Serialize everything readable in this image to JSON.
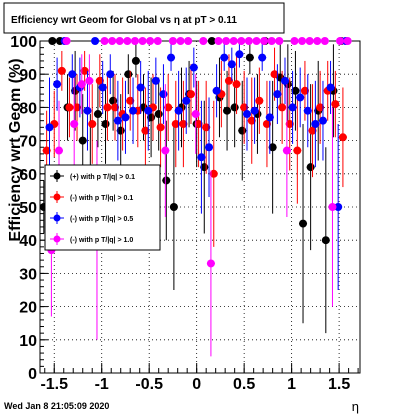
{
  "title": "Efficiency wrt Geom for Global vs  η at pT > 0.11",
  "footer": "Wed Jan  8 21:05:09 2020",
  "chart_data": {
    "type": "scatter",
    "title": "Efficiency wrt Geom for Global vs  η at pT > 0.11",
    "xlabel": "η",
    "ylabel": "Efficiency wrt Geom (%)",
    "xlim": [
      -1.65,
      1.72
    ],
    "ylim": [
      0,
      100
    ],
    "x_ticks": [
      -1.5,
      -1,
      -0.5,
      0,
      0.5,
      1,
      1.5
    ],
    "x_tick_labels": [
      "-1.5",
      "-1",
      "-0.5",
      "0",
      "0.5",
      "1",
      "1.5"
    ],
    "y_ticks": [
      0,
      10,
      20,
      30,
      40,
      50,
      60,
      70,
      80,
      90,
      100
    ],
    "y_tick_labels": [
      "0",
      "10",
      "20",
      "30",
      "40",
      "50",
      "60",
      "70",
      "80",
      "90",
      "100"
    ],
    "grid": true,
    "legend_position": "left-middle",
    "series": [
      {
        "name": "(+) with p T/|q| > 0.1",
        "color": "#000000",
        "x": [
          -1.61,
          -1.52,
          -1.44,
          -1.36,
          -1.28,
          -1.2,
          -1.12,
          -1.04,
          -0.96,
          -0.88,
          -0.8,
          -0.72,
          -0.64,
          -0.56,
          -0.48,
          -0.4,
          -0.32,
          -0.24,
          -0.16,
          -0.08,
          0.0,
          0.08,
          0.16,
          0.24,
          0.32,
          0.4,
          0.48,
          0.56,
          0.64,
          0.72,
          0.8,
          0.88,
          0.96,
          1.04,
          1.12,
          1.2,
          1.28,
          1.36,
          1.44,
          1.52
        ],
        "y": [
          50,
          100,
          100,
          80,
          85,
          70,
          60,
          78,
          75,
          82,
          73,
          90,
          94,
          80,
          77,
          78,
          58,
          50,
          80,
          84,
          75,
          62,
          100,
          83,
          79,
          80,
          73,
          95,
          78,
          100,
          68,
          89,
          87,
          85,
          45,
          62,
          79,
          40,
          85,
          100
        ],
        "err": [
          8,
          0,
          0,
          10,
          12,
          14,
          18,
          10,
          12,
          9,
          11,
          6,
          5,
          10,
          12,
          11,
          18,
          25,
          12,
          10,
          13,
          20,
          0,
          12,
          12,
          12,
          15,
          5,
          12,
          0,
          20,
          10,
          12,
          12,
          30,
          25,
          15,
          28,
          14,
          0
        ]
      },
      {
        "name": "(-) with p T/|q| > 0.1",
        "color": "#ff0000",
        "x": [
          -1.58,
          -1.5,
          -1.42,
          -1.34,
          -1.26,
          -1.18,
          -1.1,
          -1.02,
          -0.94,
          -0.86,
          -0.78,
          -0.7,
          -0.62,
          -0.54,
          -0.46,
          -0.38,
          -0.3,
          -0.22,
          -0.14,
          -0.06,
          0.02,
          0.1,
          0.18,
          0.26,
          0.34,
          0.42,
          0.5,
          0.58,
          0.66,
          0.74,
          0.82,
          0.9,
          0.98,
          1.06,
          1.14,
          1.22,
          1.3,
          1.38,
          1.46,
          1.54
        ],
        "y": [
          67,
          75,
          91,
          80,
          80,
          91,
          75,
          88,
          80,
          80,
          78,
          82,
          79,
          73,
          80,
          74,
          80,
          75,
          75,
          84,
          75,
          74,
          60,
          84,
          88,
          87,
          80,
          76,
          82,
          75,
          90,
          80,
          75,
          67,
          85,
          73,
          80,
          85,
          81,
          71
        ],
        "err": [
          12,
          10,
          6,
          9,
          10,
          6,
          12,
          8,
          10,
          10,
          11,
          9,
          11,
          13,
          10,
          12,
          10,
          13,
          13,
          9,
          13,
          14,
          22,
          10,
          8,
          9,
          11,
          13,
          10,
          13,
          8,
          11,
          14,
          16,
          9,
          14,
          11,
          9,
          10,
          15
        ]
      },
      {
        "name": "(-) with p T/|q| > 0.5",
        "color": "#0000ff",
        "x": [
          -1.55,
          -1.47,
          -1.39,
          -1.31,
          -1.23,
          -1.15,
          -1.07,
          -0.99,
          -0.91,
          -0.83,
          -0.75,
          -0.67,
          -0.59,
          -0.51,
          -0.43,
          -0.35,
          -0.27,
          -0.19,
          -0.11,
          -0.03,
          0.05,
          0.13,
          0.21,
          0.29,
          0.37,
          0.45,
          0.53,
          0.61,
          0.69,
          0.77,
          0.85,
          0.93,
          1.01,
          1.09,
          1.17,
          1.25,
          1.33,
          1.41,
          1.49,
          1.57
        ],
        "y": [
          74,
          87,
          100,
          90,
          86,
          79,
          100,
          86,
          90,
          76,
          77,
          79,
          86,
          79,
          88,
          84,
          95,
          79,
          82,
          92,
          65,
          68,
          85,
          95,
          93,
          96,
          78,
          79,
          95,
          77,
          84,
          88,
          80,
          83,
          79,
          75,
          76,
          86,
          50,
          100
        ],
        "err": [
          15,
          8,
          0,
          6,
          9,
          12,
          0,
          8,
          6,
          12,
          11,
          10,
          8,
          12,
          7,
          9,
          4,
          12,
          10,
          6,
          17,
          15,
          8,
          4,
          5,
          4,
          11,
          10,
          4,
          11,
          9,
          7,
          11,
          9,
          11,
          13,
          12,
          8,
          25,
          0
        ]
      },
      {
        "name": "(-) with p T/|q| > 1.0",
        "color": "#ff00ff",
        "x": [
          -1.53,
          -1.45,
          -1.37,
          -1.29,
          -1.21,
          -1.13,
          -1.05,
          -0.97,
          -0.89,
          -0.81,
          -0.73,
          -0.65,
          -0.57,
          -0.49,
          -0.41,
          -0.33,
          -0.25,
          -0.17,
          -0.09,
          -0.01,
          0.07,
          0.15,
          0.23,
          0.31,
          0.39,
          0.47,
          0.55,
          0.63,
          0.71,
          0.79,
          0.87,
          0.95,
          1.03,
          1.11,
          1.19,
          1.27,
          1.35,
          1.43,
          1.51,
          1.59
        ],
        "y": [
          37,
          67,
          100,
          75,
          87,
          88,
          40,
          100,
          100,
          100,
          100,
          100,
          100,
          100,
          100,
          67,
          100,
          100,
          100,
          78,
          100,
          33,
          100,
          100,
          100,
          100,
          100,
          100,
          100,
          100,
          100,
          67,
          100,
          100,
          100,
          100,
          100,
          50,
          100,
          100
        ],
        "err": [
          20,
          15,
          0,
          14,
          9,
          8,
          30,
          0,
          0,
          0,
          0,
          0,
          0,
          0,
          0,
          20,
          0,
          0,
          0,
          12,
          0,
          28,
          0,
          0,
          0,
          0,
          0,
          0,
          0,
          0,
          0,
          20,
          0,
          0,
          0,
          0,
          0,
          30,
          0,
          0
        ]
      }
    ]
  }
}
